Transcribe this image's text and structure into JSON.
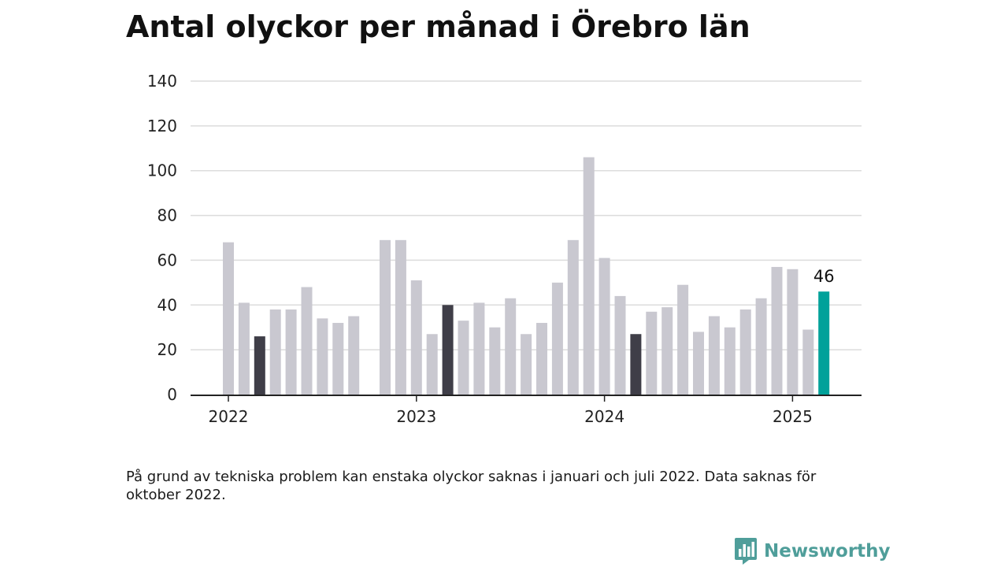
{
  "chart_data": {
    "type": "bar",
    "title": "Antal olyckor per månad i Örebro län",
    "xlabel": "",
    "ylabel": "",
    "ylim": [
      0,
      140
    ],
    "y_ticks": [
      "0",
      "20",
      "40",
      "60",
      "80",
      "100",
      "120",
      "140"
    ],
    "x_tick_labels": [
      "2022",
      "2023",
      "2024",
      "2025"
    ],
    "grid": true,
    "legend": "none",
    "categories": [
      "2022-01",
      "2022-02",
      "2022-03",
      "2022-04",
      "2022-05",
      "2022-06",
      "2022-07",
      "2022-08",
      "2022-09",
      "2022-10",
      "2022-11",
      "2022-12",
      "2023-01",
      "2023-02",
      "2023-03",
      "2023-04",
      "2023-05",
      "2023-06",
      "2023-07",
      "2023-08",
      "2023-09",
      "2023-10",
      "2023-11",
      "2023-12",
      "2024-01",
      "2024-02",
      "2024-03",
      "2024-04",
      "2024-05",
      "2024-06",
      "2024-07",
      "2024-08",
      "2024-09",
      "2024-10",
      "2024-11",
      "2024-12",
      "2025-01",
      "2025-02",
      "2025-03"
    ],
    "values": [
      68,
      41,
      26,
      38,
      38,
      48,
      34,
      32,
      35,
      null,
      69,
      69,
      51,
      27,
      40,
      33,
      41,
      30,
      43,
      27,
      32,
      50,
      69,
      106,
      61,
      44,
      27,
      37,
      39,
      49,
      28,
      35,
      30,
      38,
      43,
      57,
      56,
      29,
      46
    ],
    "highlight_march": [
      "2022-03",
      "2023-03",
      "2024-03"
    ],
    "latest": "2025-03",
    "latest_label": "46",
    "colors": {
      "bar": "#c9c8d0",
      "march": "#3f3e48",
      "latest": "#00a19a",
      "grid": "#dcdcdc",
      "axis": "#222222"
    }
  },
  "note": "På grund av tekniska problem kan enstaka olyckor saknas i januari och juli 2022. Data saknas för oktober 2022.",
  "brand": {
    "name": "Newsworthy",
    "icon": "newsworthy-logo-icon",
    "color": "#4f9e9a"
  }
}
